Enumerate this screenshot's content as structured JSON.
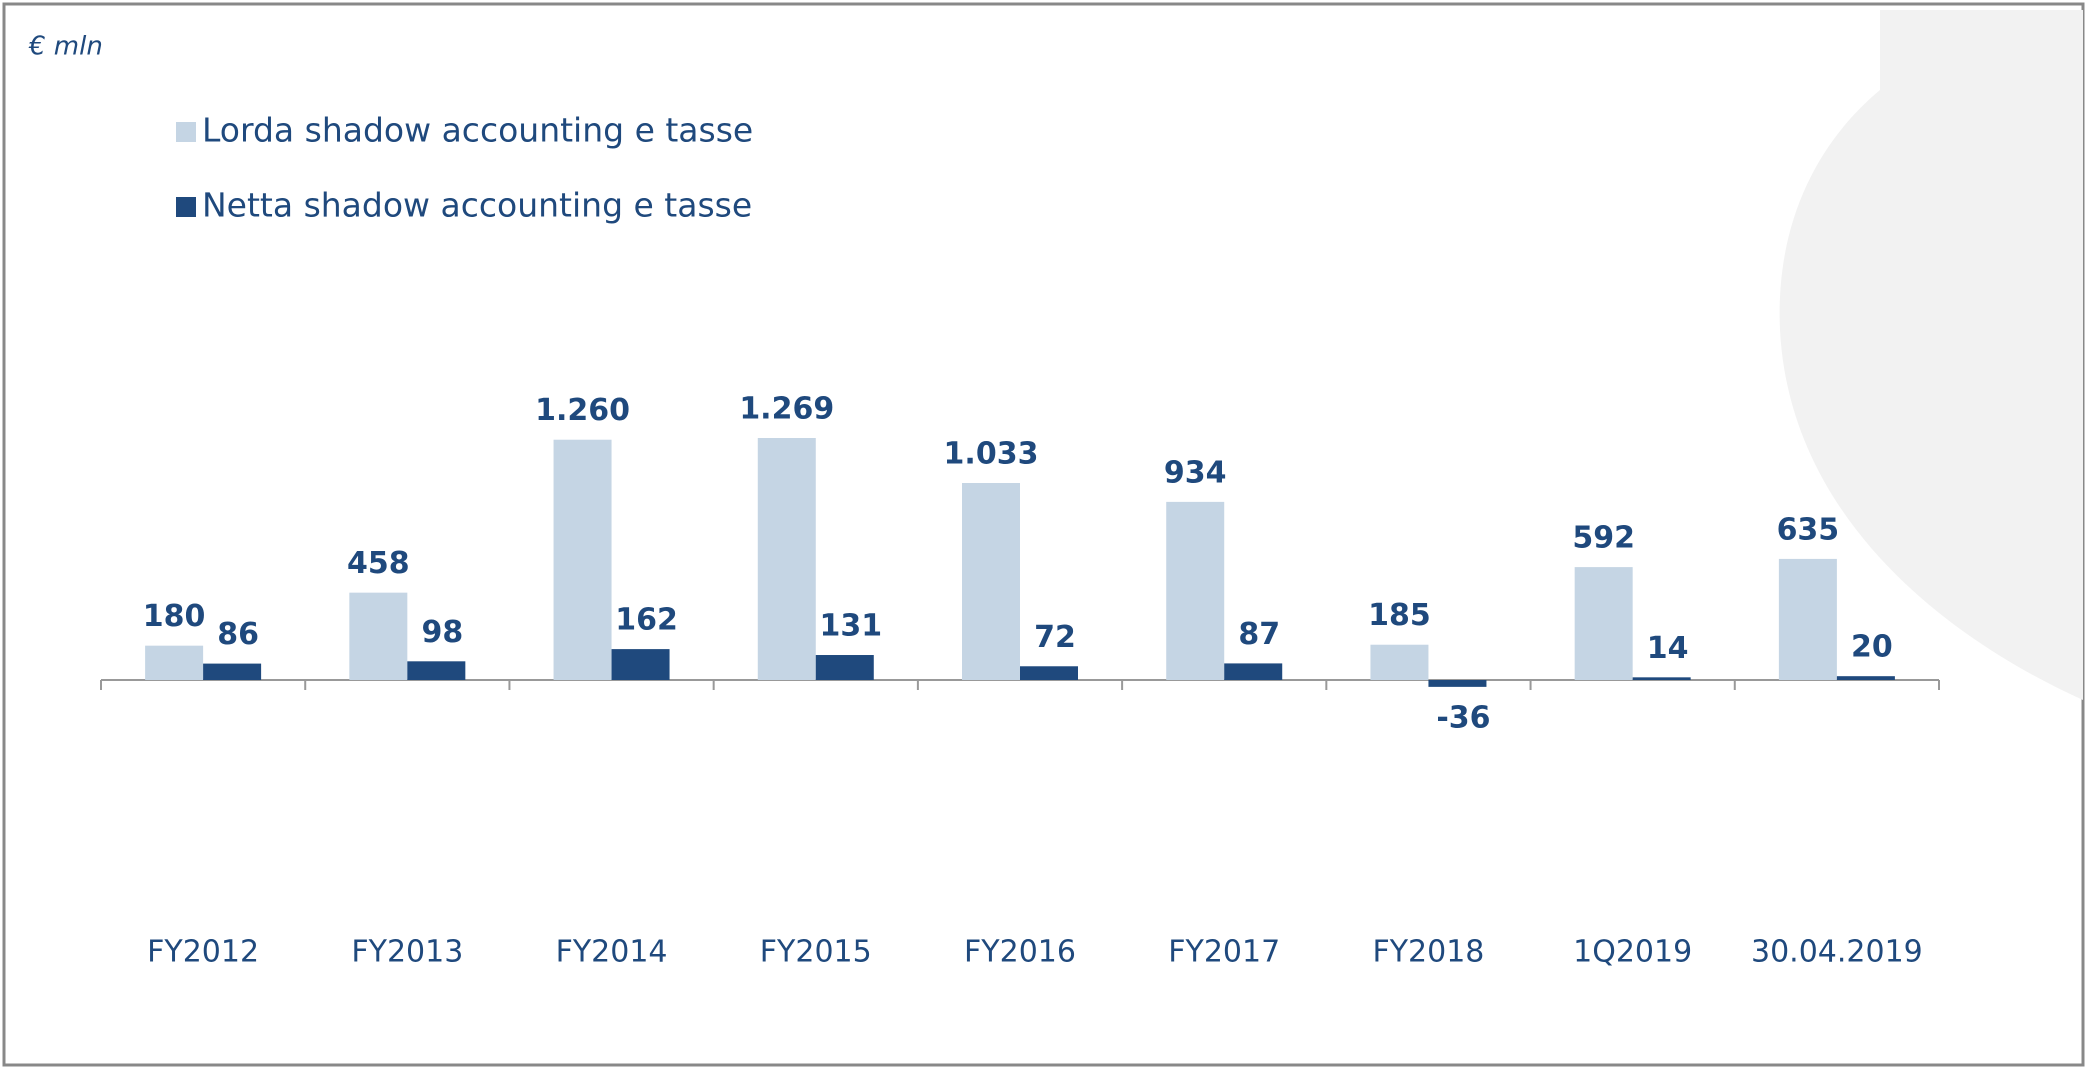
{
  "chart_data": {
    "type": "bar",
    "unit_label": "€ mln",
    "categories": [
      "FY2012",
      "FY2013",
      "FY2014",
      "FY2015",
      "FY2016",
      "FY2017",
      "FY2018",
      "1Q2019",
      "30.04.2019"
    ],
    "series": [
      {
        "name": "Lorda shadow accounting e tasse",
        "color": "#c5d5e4",
        "values": [
          180,
          458,
          1260,
          1269,
          1033,
          934,
          185,
          592,
          635
        ],
        "value_labels": [
          "180",
          "458",
          "1.260",
          "1.269",
          "1.033",
          "934",
          "185",
          "592",
          "635"
        ]
      },
      {
        "name": "Netta shadow accounting e tasse",
        "color": "#1f497d",
        "values": [
          86,
          98,
          162,
          131,
          72,
          87,
          -36,
          14,
          20
        ],
        "value_labels": [
          "86",
          "98",
          "162",
          "131",
          "72",
          "87",
          "-36",
          "14",
          "20"
        ]
      }
    ],
    "legend": "top-left"
  }
}
